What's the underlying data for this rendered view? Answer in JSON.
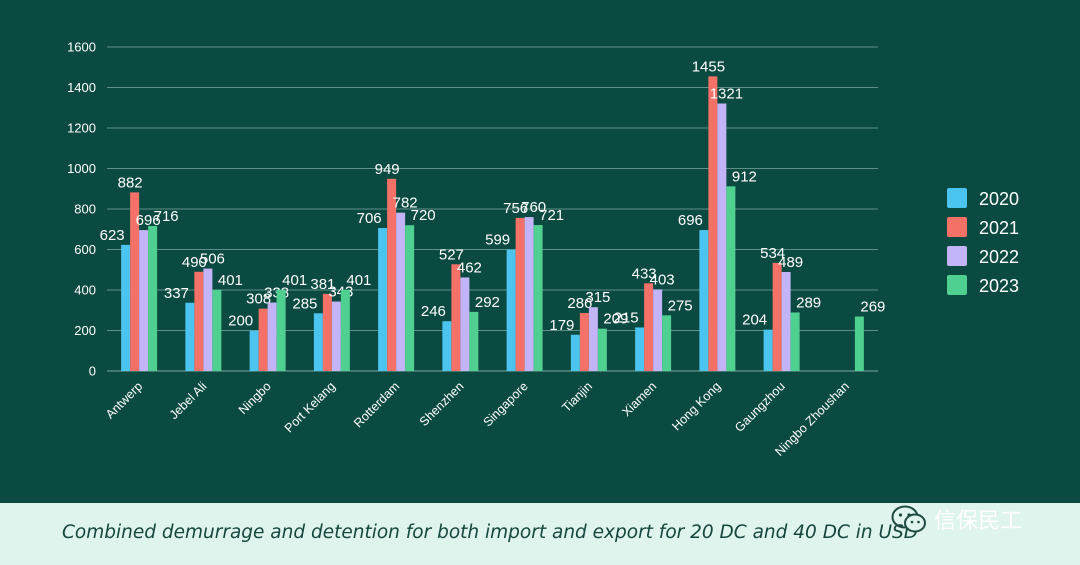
{
  "chart_data": {
    "type": "bar",
    "title": "",
    "xlabel": "",
    "ylabel": "",
    "ylim": [
      0,
      1600
    ],
    "yticks": [
      0,
      200,
      400,
      600,
      800,
      1000,
      1200,
      1400,
      1600
    ],
    "grid": true,
    "legend_position": "right",
    "categories": [
      "Antwerp",
      "Jebel Ali",
      "Ningbo",
      "Port Kelang",
      "Rotterdam",
      "Shenzhen",
      "Singapore",
      "Tianjin",
      "Xiamen",
      "Hong Kong",
      "Gaungzhou",
      "Ningbo Zhoushan"
    ],
    "series": [
      {
        "name": "2020",
        "color": "#4cc4f0",
        "values": [
          623,
          337,
          200,
          285,
          706,
          246,
          599,
          179,
          215,
          696,
          204,
          null
        ]
      },
      {
        "name": "2021",
        "color": "#f47168",
        "values": [
          882,
          490,
          308,
          381,
          949,
          527,
          756,
          286,
          433,
          1455,
          534,
          null
        ]
      },
      {
        "name": "2022",
        "color": "#c2b4f6",
        "values": [
          696,
          506,
          338,
          343,
          782,
          462,
          760,
          315,
          403,
          1321,
          489,
          null
        ]
      },
      {
        "name": "2023",
        "color": "#4fcf90",
        "values": [
          716,
          401,
          401,
          401,
          720,
          292,
          721,
          209,
          275,
          912,
          289,
          269
        ]
      }
    ]
  },
  "caption": "Combined demurrage and detention for both import and export for 20 DC and 40 DC in USD",
  "watermark": {
    "icon": "wechat-icon",
    "text": "信保民工"
  }
}
